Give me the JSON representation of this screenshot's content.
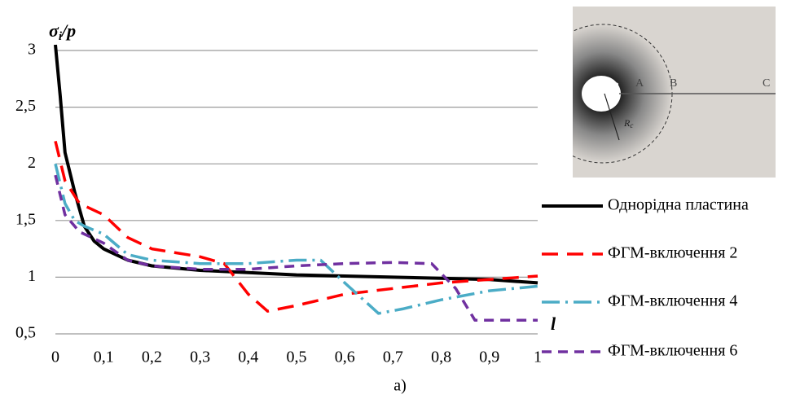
{
  "chart_data": {
    "type": "line",
    "y_label": [
      "σ",
      "i",
      "/p"
    ],
    "x_label": "l",
    "caption": "а)",
    "ylim": [
      0.5,
      3
    ],
    "yticks": [
      {
        "value": 0.5,
        "label": "0,5"
      },
      1,
      {
        "value": 1.5,
        "label": "1,5"
      },
      2,
      {
        "value": 2.5,
        "label": "2,5"
      },
      3
    ],
    "xlim": [
      0,
      1
    ],
    "xticks": [
      0,
      {
        "value": 0.1,
        "label": "0,1"
      },
      {
        "value": 0.2,
        "label": "0,2"
      },
      {
        "value": 0.3,
        "label": "0,3"
      },
      {
        "value": 0.4,
        "label": "0,4"
      },
      {
        "value": 0.5,
        "label": "0,5"
      },
      {
        "value": 0.6,
        "label": "0,6"
      },
      {
        "value": 0.7,
        "label": "0,7"
      },
      {
        "value": 0.8,
        "label": "0,8"
      },
      {
        "value": 0.9,
        "label": "0,9"
      },
      1
    ],
    "grid": true,
    "legend": "right",
    "series": [
      {
        "name": "Однорідна пластина",
        "color": "#000000",
        "x": [
          0,
          0.01,
          0.02,
          0.04,
          0.06,
          0.08,
          0.1,
          0.15,
          0.2,
          0.3,
          0.4,
          0.5,
          0.6,
          0.7,
          0.8,
          0.9,
          1
        ],
        "values": [
          3.05,
          2.6,
          2.1,
          1.75,
          1.45,
          1.32,
          1.25,
          1.15,
          1.1,
          1.06,
          1.04,
          1.02,
          1.01,
          1.0,
          0.99,
          0.98,
          0.95
        ]
      },
      {
        "name": "ФГМ-включення 2",
        "color": "#ff0000",
        "x": [
          0,
          0.02,
          0.05,
          0.1,
          0.15,
          0.2,
          0.3,
          0.35,
          0.4,
          0.44,
          0.5,
          0.6,
          0.7,
          0.8,
          0.9,
          1
        ],
        "values": [
          2.2,
          1.85,
          1.65,
          1.55,
          1.35,
          1.25,
          1.18,
          1.12,
          0.85,
          0.7,
          0.75,
          0.85,
          0.9,
          0.95,
          0.98,
          1.01
        ]
      },
      {
        "name": "ФГМ-включення 4",
        "color": "#4bacc6",
        "x": [
          0,
          0.02,
          0.04,
          0.06,
          0.1,
          0.15,
          0.2,
          0.3,
          0.4,
          0.5,
          0.55,
          0.6,
          0.67,
          0.72,
          0.8,
          0.9,
          1
        ],
        "values": [
          2.0,
          1.65,
          1.5,
          1.45,
          1.38,
          1.2,
          1.15,
          1.12,
          1.12,
          1.15,
          1.15,
          0.95,
          0.68,
          0.72,
          0.8,
          0.88,
          0.92
        ]
      },
      {
        "name": "ФГМ-включення 6",
        "color": "#7030a0",
        "x": [
          0,
          0.02,
          0.05,
          0.1,
          0.15,
          0.2,
          0.3,
          0.4,
          0.5,
          0.6,
          0.7,
          0.78,
          0.83,
          0.87,
          0.95,
          1
        ],
        "values": [
          1.9,
          1.55,
          1.4,
          1.3,
          1.15,
          1.1,
          1.07,
          1.07,
          1.1,
          1.12,
          1.13,
          1.12,
          0.9,
          0.62,
          0.62,
          0.62
        ]
      }
    ],
    "inset": {
      "labels": [
        "A",
        "B",
        "C",
        "R",
        "R",
        "c"
      ]
    }
  }
}
